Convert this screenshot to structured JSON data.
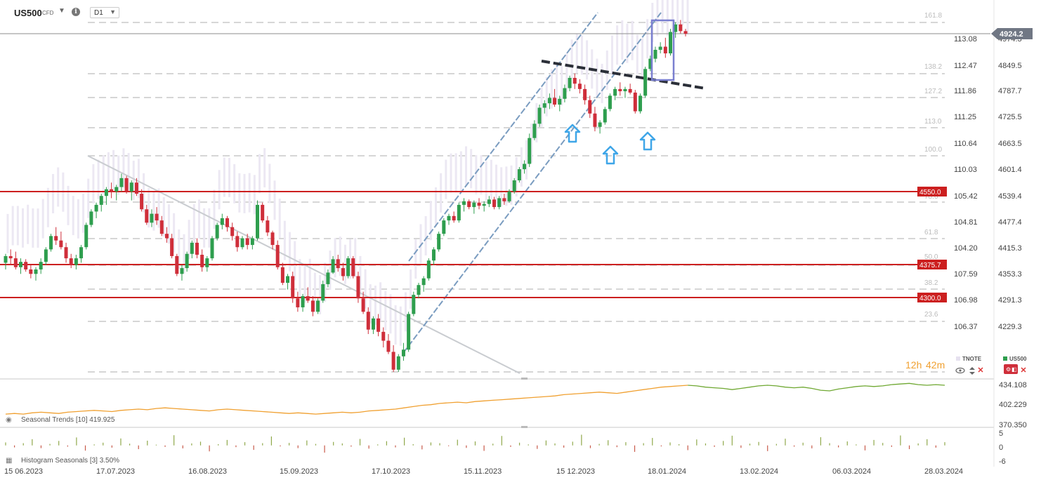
{
  "header": {
    "symbol": "US500",
    "instrument_type": "CFD",
    "caret": "▼",
    "info": "i",
    "timeframe": "D1",
    "timeframe_caret": "▼"
  },
  "legend": {
    "secondary": "TNOTE",
    "primary": "US500",
    "countdown_hours": "12h",
    "countdown_minutes": "42m"
  },
  "indicators": {
    "seasonal_trends": "Seasonal Trends [10] 419.925",
    "histogram": "Histogram Seasonals [3] 3.50%"
  },
  "colors": {
    "bull": "#2e9e4e",
    "bear": "#cf2e3a",
    "level": "#cc1f1f",
    "channel": "#7a9cc0",
    "arrow": "#3fa6e8",
    "highlight": "#7a7fd0",
    "price_badge": "#707784"
  },
  "chart_data": [
    {
      "type": "candlestick",
      "title": "US500 CFD D1",
      "ylim": [
        4165,
        4975
      ],
      "right_axis_ticks": [
        "4974.3",
        "4849.5",
        "4787.7",
        "4725.5",
        "4663.5",
        "4601.4",
        "4539.4",
        "4477.4",
        "4415.3",
        "4353.3",
        "4291.3",
        "4229.3"
      ],
      "secondary_axis_ticks": [
        "113.08",
        "112.47",
        "111.86",
        "111.25",
        "110.64",
        "110.03",
        "105.42",
        "104.81",
        "104.20",
        "107.59",
        "106.98",
        "106.37"
      ],
      "x_date_labels": [
        "15 06.2023",
        "17.07.2023",
        "16.08.2023",
        "15.09.2023",
        "17.10.2023",
        "15.11.2023",
        "15 12.2023",
        "18.01.2024",
        "13.02.2024",
        "06.03.2024",
        "28.03.2024"
      ],
      "last_price": "4924.2",
      "levels": [
        "4550.0",
        "4375.7",
        "4300.0"
      ],
      "fibonacci_labels": [
        "161.8",
        "138.2",
        "127.2",
        "113.0",
        "100.0",
        "78.6",
        "61.8",
        "50.0",
        "38.2",
        "23.6"
      ],
      "ohlc": [
        [
          4410,
          4430,
          4395,
          4425
        ],
        [
          4425,
          4440,
          4405,
          4420
        ],
        [
          4420,
          4435,
          4395,
          4400
        ],
        [
          4400,
          4420,
          4385,
          4412
        ],
        [
          4412,
          4418,
          4390,
          4395
        ],
        [
          4395,
          4405,
          4375,
          4385
        ],
        [
          4385,
          4400,
          4370,
          4395
        ],
        [
          4395,
          4420,
          4385,
          4412
        ],
        [
          4412,
          4445,
          4405,
          4440
        ],
        [
          4440,
          4475,
          4435,
          4470
        ],
        [
          4470,
          4490,
          4450,
          4460
        ],
        [
          4460,
          4480,
          4440,
          4445
        ],
        [
          4445,
          4455,
          4410,
          4420
        ],
        [
          4420,
          4430,
          4398,
          4405
        ],
        [
          4405,
          4428,
          4395,
          4420
        ],
        [
          4420,
          4450,
          4410,
          4445
        ],
        [
          4445,
          4500,
          4440,
          4495
        ],
        [
          4495,
          4530,
          4490,
          4525
        ],
        [
          4525,
          4545,
          4510,
          4540
        ],
        [
          4540,
          4565,
          4525,
          4560
        ],
        [
          4560,
          4580,
          4540,
          4575
        ],
        [
          4575,
          4590,
          4555,
          4570
        ],
        [
          4570,
          4585,
          4550,
          4580
        ],
        [
          4580,
          4610,
          4570,
          4600
        ],
        [
          4600,
          4605,
          4565,
          4570
        ],
        [
          4570,
          4595,
          4550,
          4590
        ],
        [
          4590,
          4600,
          4560,
          4565
        ],
        [
          4565,
          4575,
          4525,
          4530
        ],
        [
          4530,
          4540,
          4495,
          4500
        ],
        [
          4500,
          4530,
          4490,
          4520
        ],
        [
          4520,
          4535,
          4495,
          4505
        ],
        [
          4505,
          4515,
          4470,
          4475
        ],
        [
          4475,
          4490,
          4455,
          4465
        ],
        [
          4465,
          4475,
          4420,
          4425
        ],
        [
          4425,
          4430,
          4380,
          4385
        ],
        [
          4385,
          4405,
          4370,
          4398
        ],
        [
          4398,
          4435,
          4390,
          4430
        ],
        [
          4430,
          4460,
          4420,
          4455
        ],
        [
          4455,
          4465,
          4420,
          4428
        ],
        [
          4428,
          4440,
          4390,
          4400
        ],
        [
          4400,
          4425,
          4390,
          4420
        ],
        [
          4420,
          4470,
          4415,
          4465
        ],
        [
          4465,
          4500,
          4460,
          4495
        ],
        [
          4495,
          4520,
          4485,
          4510
        ],
        [
          4510,
          4515,
          4480,
          4490
        ],
        [
          4490,
          4500,
          4460,
          4470
        ],
        [
          4470,
          4480,
          4435,
          4445
        ],
        [
          4445,
          4470,
          4440,
          4465
        ],
        [
          4465,
          4475,
          4440,
          4450
        ],
        [
          4450,
          4470,
          4440,
          4465
        ],
        [
          4465,
          4550,
          4460,
          4540
        ],
        [
          4540,
          4545,
          4500,
          4505
        ],
        [
          4505,
          4515,
          4470,
          4478
        ],
        [
          4478,
          4482,
          4440,
          4450
        ],
        [
          4450,
          4460,
          4395,
          4400
        ],
        [
          4400,
          4410,
          4360,
          4365
        ],
        [
          4365,
          4385,
          4350,
          4380
        ],
        [
          4380,
          4390,
          4320,
          4330
        ],
        [
          4330,
          4345,
          4300,
          4310
        ],
        [
          4310,
          4340,
          4300,
          4335
        ],
        [
          4335,
          4355,
          4320,
          4325
        ],
        [
          4325,
          4335,
          4290,
          4300
        ],
        [
          4300,
          4330,
          4295,
          4325
        ],
        [
          4325,
          4370,
          4320,
          4362
        ],
        [
          4362,
          4395,
          4355,
          4388
        ],
        [
          4388,
          4425,
          4385,
          4418
        ],
        [
          4418,
          4428,
          4390,
          4398
        ],
        [
          4398,
          4410,
          4370,
          4380
        ],
        [
          4380,
          4425,
          4375,
          4420
        ],
        [
          4420,
          4425,
          4375,
          4380
        ],
        [
          4380,
          4390,
          4320,
          4330
        ],
        [
          4330,
          4345,
          4295,
          4300
        ],
        [
          4300,
          4310,
          4250,
          4260
        ],
        [
          4260,
          4290,
          4250,
          4285
        ],
        [
          4285,
          4295,
          4245,
          4255
        ],
        [
          4255,
          4265,
          4220,
          4235
        ],
        [
          4235,
          4250,
          4205,
          4210
        ],
        [
          4210,
          4225,
          4165,
          4170
        ],
        [
          4170,
          4205,
          4165,
          4200
        ],
        [
          4200,
          4230,
          4190,
          4215
        ],
        [
          4215,
          4300,
          4210,
          4295
        ],
        [
          4295,
          4345,
          4290,
          4338
        ],
        [
          4338,
          4365,
          4330,
          4360
        ],
        [
          4360,
          4380,
          4345,
          4375
        ],
        [
          4375,
          4420,
          4370,
          4415
        ],
        [
          4415,
          4445,
          4405,
          4440
        ],
        [
          4440,
          4480,
          4435,
          4475
        ],
        [
          4475,
          4510,
          4470,
          4505
        ],
        [
          4505,
          4520,
          4495,
          4515
        ],
        [
          4515,
          4525,
          4500,
          4505
        ],
        [
          4505,
          4545,
          4500,
          4540
        ],
        [
          4540,
          4555,
          4525,
          4548
        ],
        [
          4548,
          4552,
          4530,
          4535
        ],
        [
          4535,
          4550,
          4520,
          4545
        ],
        [
          4545,
          4555,
          4530,
          4538
        ],
        [
          4538,
          4548,
          4525,
          4542
        ],
        [
          4542,
          4560,
          4535,
          4552
        ],
        [
          4552,
          4558,
          4530,
          4535
        ],
        [
          4535,
          4560,
          4530,
          4555
        ],
        [
          4555,
          4565,
          4540,
          4548
        ],
        [
          4548,
          4575,
          4545,
          4570
        ],
        [
          4570,
          4600,
          4565,
          4595
        ],
        [
          4595,
          4625,
          4590,
          4620
        ],
        [
          4620,
          4640,
          4610,
          4632
        ],
        [
          4632,
          4700,
          4625,
          4690
        ],
        [
          4690,
          4730,
          4685,
          4722
        ],
        [
          4722,
          4765,
          4715,
          4758
        ],
        [
          4758,
          4775,
          4745,
          4768
        ],
        [
          4768,
          4790,
          4755,
          4780
        ],
        [
          4780,
          4800,
          4760,
          4765
        ],
        [
          4765,
          4785,
          4750,
          4778
        ],
        [
          4778,
          4810,
          4770,
          4802
        ],
        [
          4802,
          4830,
          4795,
          4825
        ],
        [
          4825,
          4835,
          4800,
          4812
        ],
        [
          4812,
          4822,
          4790,
          4800
        ],
        [
          4800,
          4810,
          4765,
          4775
        ],
        [
          4775,
          4785,
          4735,
          4745
        ],
        [
          4745,
          4760,
          4705,
          4715
        ],
        [
          4715,
          4730,
          4700,
          4725
        ],
        [
          4725,
          4760,
          4720,
          4755
        ],
        [
          4755,
          4790,
          4750,
          4785
        ],
        [
          4785,
          4805,
          4775,
          4800
        ],
        [
          4800,
          4815,
          4785,
          4795
        ],
        [
          4795,
          4805,
          4780,
          4800
        ],
        [
          4800,
          4812,
          4788,
          4792
        ],
        [
          4792,
          4798,
          4745,
          4750
        ],
        [
          4750,
          4790,
          4745,
          4785
        ],
        [
          4785,
          4850,
          4780,
          4845
        ],
        [
          4845,
          4875,
          4840,
          4868
        ],
        [
          4868,
          4895,
          4860,
          4888
        ],
        [
          4888,
          4905,
          4880,
          4895
        ],
        [
          4895,
          4915,
          4870,
          4880
        ],
        [
          4880,
          4935,
          4875,
          4928
        ],
        [
          4928,
          4950,
          4915,
          4945
        ],
        [
          4945,
          4955,
          4925,
          4930
        ],
        [
          4930,
          4935,
          4918,
          4924
        ]
      ]
    },
    {
      "type": "line",
      "title": "Seasonal Trends [10] 419.925",
      "ylim": [
        370.35,
        434.108
      ],
      "right_axis_ticks": [
        "434.108",
        "402.229",
        "370.350"
      ],
      "values": [
        387,
        388,
        387,
        389,
        390,
        389,
        388,
        390,
        391,
        392,
        393,
        392,
        391,
        393,
        394,
        395,
        394,
        396,
        397,
        396,
        395,
        394,
        393,
        392,
        394,
        395,
        394,
        393,
        392,
        391,
        390,
        389,
        388,
        389,
        388,
        387,
        388,
        389,
        390,
        389,
        390,
        392,
        393,
        394,
        395,
        397,
        399,
        401,
        402,
        404,
        405,
        406,
        405,
        407,
        408,
        409,
        410,
        411,
        412,
        413,
        414,
        415,
        416,
        418,
        419,
        420,
        421,
        422,
        421,
        420,
        422,
        424,
        426,
        428,
        430,
        431,
        432,
        433,
        432,
        430,
        429,
        428,
        426,
        428,
        430,
        432,
        433,
        432,
        430,
        429,
        430,
        428,
        425,
        424,
        427,
        429,
        431,
        432,
        431,
        432,
        434,
        435,
        436,
        434,
        433,
        434,
        433
      ]
    },
    {
      "type": "bar",
      "title": "Histogram Seasonals [3] 3.50%",
      "ylim": [
        -6,
        5
      ],
      "right_axis_ticks": [
        "5",
        "0",
        "-6"
      ],
      "values": [
        1.2,
        -0.8,
        0.9,
        2.5,
        -1.1,
        0.6,
        1.8,
        -0.5,
        3.2,
        -2.1,
        0.4,
        1.1,
        -0.9,
        2.8,
        0.7,
        -1.5,
        1.9,
        0.3,
        -0.6,
        4.1,
        -1.2,
        0.8,
        1.5,
        -2.4,
        0.5,
        2.2,
        -0.7,
        1.3,
        -1.8,
        0.9,
        3.6,
        -0.4,
        1.0,
        -1.1,
        2.0,
        0.6,
        -2.9,
        1.4,
        0.8,
        -0.5,
        2.6,
        -1.3,
        0.4,
        1.7,
        -0.8,
        3.1,
        0.5,
        -1.6,
        1.2,
        0.9,
        -0.3,
        2.3,
        -1.0,
        1.6,
        -2.2,
        0.7,
        3.8,
        -0.6,
        1.1,
        0.4,
        -1.4,
        2.0,
        0.8,
        -0.9,
        1.5,
        4.3,
        -1.1,
        0.6,
        2.1,
        -0.7,
        1.3,
        -2.6,
        0.9,
        3.0,
        -0.4,
        1.2,
        0.5,
        -1.9,
        2.4,
        0.8,
        -0.6,
        1.8,
        3.9,
        -1.0,
        0.7,
        1.4,
        -2.3,
        0.6,
        2.7,
        -0.5,
        1.1,
        -1.2,
        3.3,
        0.9,
        -0.8,
        1.6,
        0.4,
        -2.0,
        2.2,
        1.0,
        -0.6,
        4.0,
        -1.5,
        0.8,
        2.5,
        -0.9,
        1.3
      ]
    }
  ]
}
